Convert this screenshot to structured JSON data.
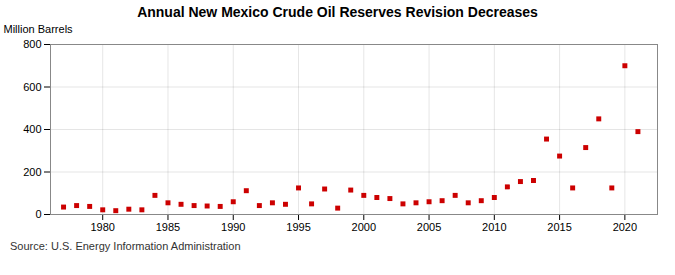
{
  "chart_data": {
    "type": "scatter",
    "title": "Annual New Mexico Crude Oil Reserves Revision Decreases",
    "ylabel": "Million Barrels",
    "source": "Source: U.S. Energy Information Administration",
    "color": "#cc0000",
    "marker": "square",
    "grid": true,
    "xlim": [
      1976,
      2022.5
    ],
    "xticks": [
      1980,
      1985,
      1990,
      1995,
      2000,
      2005,
      2010,
      2015,
      2020
    ],
    "ylim": [
      0,
      800
    ],
    "yticks": [
      0,
      200,
      400,
      600,
      800
    ],
    "x": [
      1977,
      1978,
      1979,
      1980,
      1981,
      1982,
      1983,
      1984,
      1985,
      1986,
      1987,
      1988,
      1989,
      1990,
      1991,
      1992,
      1993,
      1994,
      1995,
      1996,
      1997,
      1998,
      1999,
      2000,
      2001,
      2002,
      2003,
      2004,
      2005,
      2006,
      2007,
      2008,
      2009,
      2010,
      2011,
      2012,
      2013,
      2014,
      2015,
      2016,
      2017,
      2018,
      2019,
      2020,
      2021
    ],
    "values": [
      35,
      42,
      38,
      22,
      18,
      25,
      22,
      90,
      55,
      48,
      42,
      40,
      38,
      60,
      112,
      42,
      55,
      48,
      125,
      50,
      120,
      30,
      115,
      90,
      80,
      75,
      50,
      55,
      60,
      65,
      90,
      55,
      65,
      80,
      130,
      155,
      160,
      355,
      275,
      125,
      315,
      450,
      125,
      700,
      390
    ]
  }
}
